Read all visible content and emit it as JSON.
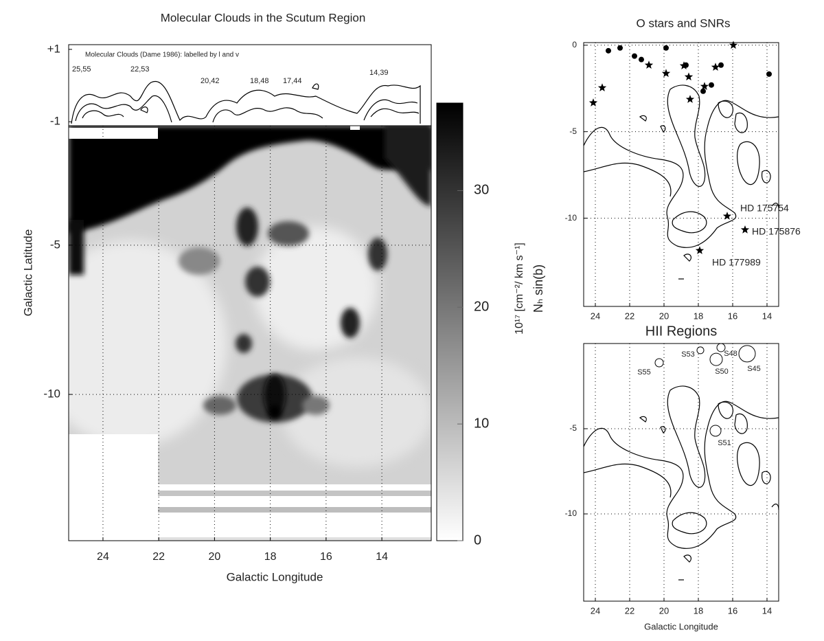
{
  "chart_data": [
    {
      "type": "image",
      "title": "Molecular Clouds in the Scutum Region",
      "xlabel": "Galactic Longitude",
      "ylabel": "Galactic Latitude",
      "xlim": [
        25.23,
        12.23
      ],
      "xticks": [
        24,
        22,
        20,
        18,
        16,
        14
      ],
      "ylim": [
        -14.9,
        -1
      ],
      "yticks": [
        -5,
        -10
      ],
      "grid": true
    },
    {
      "type": "contour",
      "title": "Molecular Clouds (Dame 1986):  labelled by l and v",
      "annotations": [
        "25,55",
        "22,53",
        "20,42",
        "18,48",
        "17,44",
        "14,39"
      ],
      "ylim": [
        -1.11,
        1.13
      ],
      "yticks": [
        {
          "value": 1,
          "label": "+1"
        },
        -1
      ]
    },
    {
      "type": "colorbar",
      "label": "10¹⁷ [cm⁻²/ km s⁻¹]",
      "sublabel": "Nₕ sin(b)",
      "ylim": [
        0,
        37.5
      ],
      "yticks": [
        0,
        10,
        20,
        30
      ]
    },
    {
      "type": "scatter",
      "title": "O stars and SNRs",
      "xlim": [
        24.68,
        13.32
      ],
      "xticks": [
        24,
        22,
        20,
        18,
        16,
        14
      ],
      "ylim": [
        -15.1,
        0.15
      ],
      "yticks": [
        0,
        -5,
        -10
      ],
      "grid": true,
      "series": [
        {
          "marker": "star",
          "color": "#000000",
          "x": [
            24.12,
            23.6,
            20.88,
            19.88,
            18.84,
            18.56,
            18.48,
            17.64,
            17.0,
            15.96,
            16.32,
            15.28,
            17.92
          ],
          "y": [
            -3.33,
            -2.46,
            -1.15,
            -1.63,
            -1.19,
            -1.83,
            -3.13,
            -2.38,
            -1.27,
            0.0,
            -9.88,
            -10.67,
            -11.87
          ]
        },
        {
          "marker": "circle",
          "color": "#000000",
          "x": [
            23.24,
            22.56,
            21.72,
            21.32,
            19.88,
            18.72,
            17.72,
            17.24,
            16.68,
            13.88
          ],
          "y": [
            -0.32,
            -0.16,
            -0.63,
            -0.83,
            -0.16,
            -1.15,
            -2.66,
            -2.3,
            -1.15,
            -1.67
          ]
        }
      ],
      "annotations": [
        "HD 175754",
        "HD 175876",
        "HD 177989"
      ]
    },
    {
      "type": "bubble",
      "title": "HII Regions",
      "xlabel": "Galactic Longitude",
      "xlim": [
        24.68,
        13.32
      ],
      "xticks": [
        24,
        22,
        20,
        18,
        16,
        14
      ],
      "ylim": [
        -15.12,
        0
      ],
      "yticks": [
        -5,
        -10
      ],
      "grid": true,
      "x": [
        20.28,
        17.88,
        16.68,
        16.96,
        15.16,
        17.0
      ],
      "y": [
        -1.13,
        -0.4,
        -0.24,
        -0.93,
        -0.6,
        -5.12
      ],
      "sizes": [
        0.24,
        0.2,
        0.24,
        0.36,
        0.48,
        0.32
      ],
      "labels": [
        "S55",
        "S53",
        "S48",
        "S50",
        "S45",
        "S51"
      ]
    }
  ]
}
